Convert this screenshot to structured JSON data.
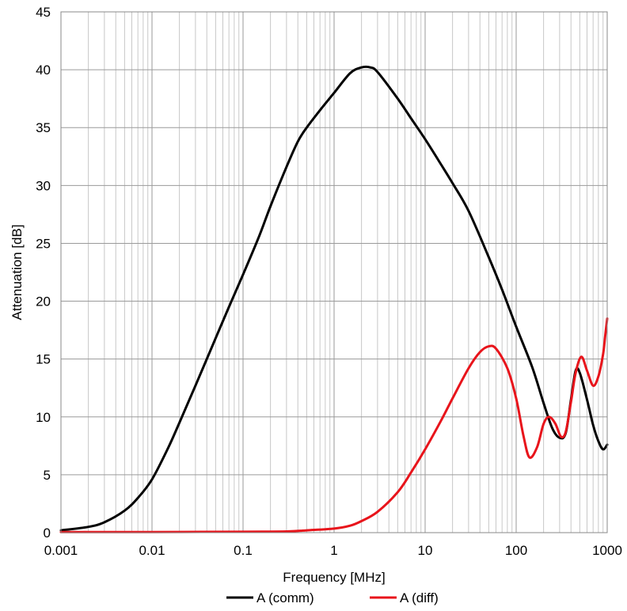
{
  "chart_data": {
    "type": "line",
    "title": "",
    "xlabel": "Frequency [MHz]",
    "ylabel": "Attenuation [dB]",
    "xscale": "log",
    "xlim": [
      0.001,
      1000
    ],
    "ylim": [
      0,
      45
    ],
    "grid": true,
    "legend_position": "bottom",
    "x_ticks": [
      "0.001",
      "0.01",
      "0.1",
      "1",
      "10",
      "100",
      "1000"
    ],
    "y_ticks": [
      "0",
      "5",
      "10",
      "15",
      "20",
      "25",
      "30",
      "35",
      "40",
      "45"
    ],
    "series": [
      {
        "name": "A (comm)",
        "color": "#000000",
        "points": [
          [
            0.001,
            0.2
          ],
          [
            0.002,
            0.5
          ],
          [
            0.003,
            0.9
          ],
          [
            0.005,
            1.9
          ],
          [
            0.007,
            3.0
          ],
          [
            0.01,
            4.6
          ],
          [
            0.015,
            7.3
          ],
          [
            0.02,
            9.5
          ],
          [
            0.03,
            12.7
          ],
          [
            0.05,
            16.8
          ],
          [
            0.07,
            19.5
          ],
          [
            0.1,
            22.3
          ],
          [
            0.15,
            25.6
          ],
          [
            0.2,
            28.2
          ],
          [
            0.3,
            31.6
          ],
          [
            0.4,
            33.8
          ],
          [
            0.5,
            35.0
          ],
          [
            0.7,
            36.5
          ],
          [
            1.0,
            38.0
          ],
          [
            1.5,
            39.7
          ],
          [
            2.0,
            40.2
          ],
          [
            2.5,
            40.2
          ],
          [
            3.0,
            39.8
          ],
          [
            5.0,
            37.5
          ],
          [
            7.0,
            35.8
          ],
          [
            10,
            34.0
          ],
          [
            15,
            31.8
          ],
          [
            20,
            30.2
          ],
          [
            30,
            27.8
          ],
          [
            50,
            23.8
          ],
          [
            70,
            21.0
          ],
          [
            100,
            17.8
          ],
          [
            150,
            14.3
          ],
          [
            200,
            11.2
          ],
          [
            250,
            9.0
          ],
          [
            300,
            8.2
          ],
          [
            350,
            8.6
          ],
          [
            400,
            11.5
          ],
          [
            450,
            14.0
          ],
          [
            500,
            13.8
          ],
          [
            600,
            11.5
          ],
          [
            700,
            9.3
          ],
          [
            800,
            7.9
          ],
          [
            900,
            7.2
          ],
          [
            1000,
            7.6
          ]
        ]
      },
      {
        "name": "A (diff)",
        "color": "#e8141b",
        "points": [
          [
            0.001,
            0.05
          ],
          [
            0.01,
            0.05
          ],
          [
            0.1,
            0.08
          ],
          [
            0.3,
            0.1
          ],
          [
            0.5,
            0.2
          ],
          [
            1.0,
            0.35
          ],
          [
            1.5,
            0.6
          ],
          [
            2.0,
            1.0
          ],
          [
            3.0,
            1.8
          ],
          [
            5.0,
            3.5
          ],
          [
            7.0,
            5.2
          ],
          [
            10,
            7.2
          ],
          [
            15,
            9.7
          ],
          [
            20,
            11.6
          ],
          [
            30,
            14.2
          ],
          [
            40,
            15.6
          ],
          [
            50,
            16.1
          ],
          [
            60,
            15.9
          ],
          [
            80,
            14.2
          ],
          [
            100,
            11.6
          ],
          [
            120,
            8.4
          ],
          [
            140,
            6.5
          ],
          [
            170,
            7.4
          ],
          [
            200,
            9.4
          ],
          [
            230,
            10.0
          ],
          [
            270,
            9.4
          ],
          [
            310,
            8.3
          ],
          [
            350,
            8.7
          ],
          [
            400,
            11.3
          ],
          [
            450,
            13.8
          ],
          [
            520,
            15.2
          ],
          [
            600,
            14.0
          ],
          [
            700,
            12.7
          ],
          [
            800,
            13.5
          ],
          [
            900,
            15.4
          ],
          [
            950,
            17.0
          ],
          [
            1000,
            18.5
          ]
        ]
      }
    ]
  }
}
